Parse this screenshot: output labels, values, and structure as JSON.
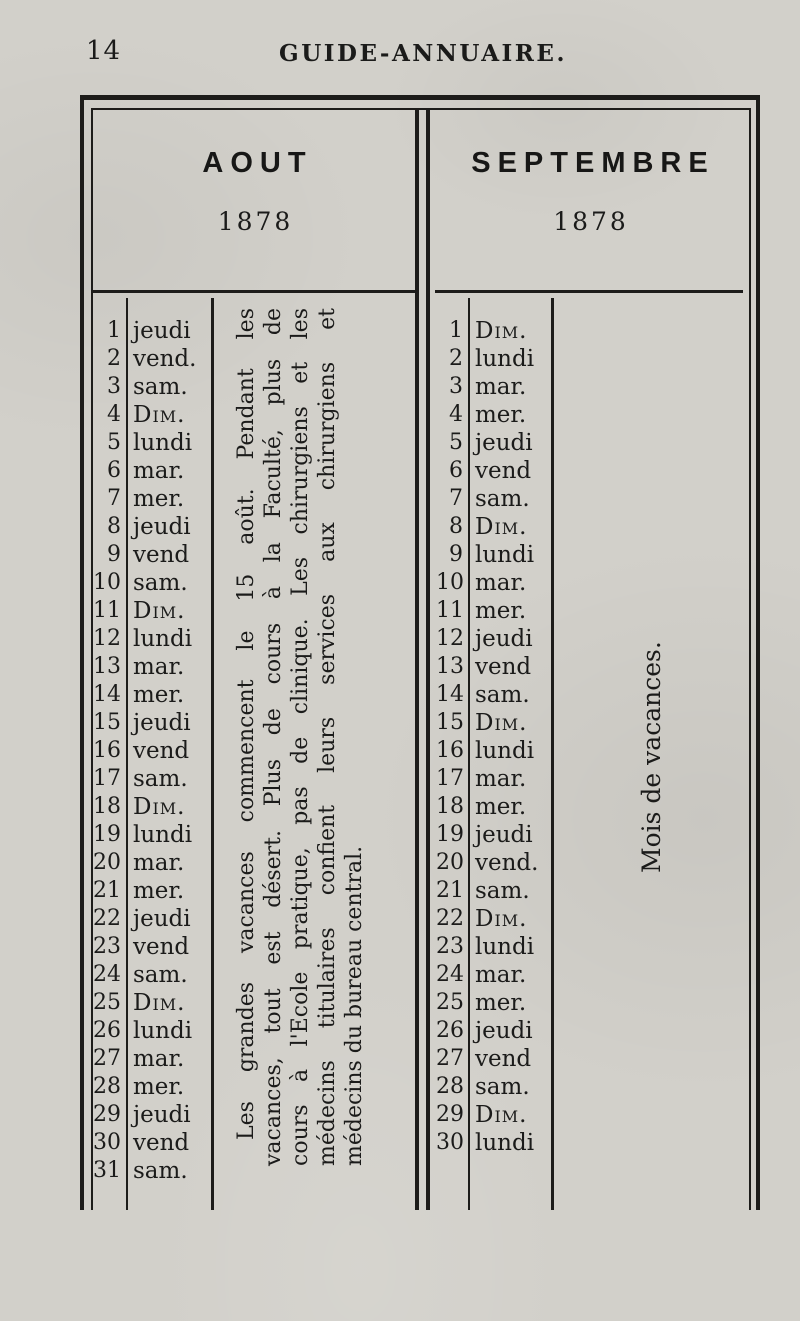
{
  "page": {
    "number": "14",
    "header": "GUIDE-ANNUAIRE."
  },
  "august": {
    "title": "AOUT",
    "year": "1878",
    "days": [
      {
        "n": "1",
        "d": "jeudi"
      },
      {
        "n": "2",
        "d": "vend."
      },
      {
        "n": "3",
        "d": "sam."
      },
      {
        "n": "4",
        "d": "Dim.",
        "sc": true
      },
      {
        "n": "5",
        "d": "lundi"
      },
      {
        "n": "6",
        "d": "mar."
      },
      {
        "n": "7",
        "d": "mer."
      },
      {
        "n": "8",
        "d": "jeudi"
      },
      {
        "n": "9",
        "d": "vend"
      },
      {
        "n": "10",
        "d": "sam."
      },
      {
        "n": "11",
        "d": "Dim.",
        "sc": true
      },
      {
        "n": "12",
        "d": "lundi"
      },
      {
        "n": "13",
        "d": "mar."
      },
      {
        "n": "14",
        "d": "mer."
      },
      {
        "n": "15",
        "d": "jeudi"
      },
      {
        "n": "16",
        "d": "vend"
      },
      {
        "n": "17",
        "d": "sam."
      },
      {
        "n": "18",
        "d": "Dim.",
        "sc": true
      },
      {
        "n": "19",
        "d": "lundi"
      },
      {
        "n": "20",
        "d": "mar."
      },
      {
        "n": "21",
        "d": "mer."
      },
      {
        "n": "22",
        "d": "jeudi"
      },
      {
        "n": "23",
        "d": "vend"
      },
      {
        "n": "24",
        "d": "sam."
      },
      {
        "n": "25",
        "d": "Dim.",
        "sc": true
      },
      {
        "n": "26",
        "d": "lundi"
      },
      {
        "n": "27",
        "d": "mar."
      },
      {
        "n": "28",
        "d": "mer."
      },
      {
        "n": "29",
        "d": "jeudi"
      },
      {
        "n": "30",
        "d": "vend"
      },
      {
        "n": "31",
        "d": "sam."
      }
    ],
    "note_lines": [
      "Les grandes vacances commencent le 15 août. Pendant les",
      "vacances, tout est désert. Plus de cours à la Faculté, plus de",
      "cours à l'Ecole pratique, pas de clinique. Les chirurgiens et les",
      "médecins titulaires confient leurs services aux chirurgiens et",
      "médecins du bureau central."
    ]
  },
  "september": {
    "title": "SEPTEMBRE",
    "year": "1878",
    "days": [
      {
        "n": "1",
        "d": "Dim.",
        "sc": true
      },
      {
        "n": "2",
        "d": "lundi"
      },
      {
        "n": "3",
        "d": "mar."
      },
      {
        "n": "4",
        "d": "mer."
      },
      {
        "n": "5",
        "d": "jeudi"
      },
      {
        "n": "6",
        "d": "vend"
      },
      {
        "n": "7",
        "d": "sam."
      },
      {
        "n": "8",
        "d": "Dim.",
        "sc": true
      },
      {
        "n": "9",
        "d": "lundi"
      },
      {
        "n": "10",
        "d": "mar."
      },
      {
        "n": "11",
        "d": "mer."
      },
      {
        "n": "12",
        "d": "jeudi"
      },
      {
        "n": "13",
        "d": "vend"
      },
      {
        "n": "14",
        "d": "sam."
      },
      {
        "n": "15",
        "d": "Dim.",
        "sc": true
      },
      {
        "n": "16",
        "d": "lundi"
      },
      {
        "n": "17",
        "d": "mar."
      },
      {
        "n": "18",
        "d": "mer."
      },
      {
        "n": "19",
        "d": "jeudi"
      },
      {
        "n": "20",
        "d": "vend."
      },
      {
        "n": "21",
        "d": "sam."
      },
      {
        "n": "22",
        "d": "Dim.",
        "sc": true
      },
      {
        "n": "23",
        "d": "lundi"
      },
      {
        "n": "24",
        "d": "mar."
      },
      {
        "n": "25",
        "d": "mer."
      },
      {
        "n": "26",
        "d": "jeudi"
      },
      {
        "n": "27",
        "d": "vend"
      },
      {
        "n": "28",
        "d": "sam."
      },
      {
        "n": "29",
        "d": "Dim.",
        "sc": true
      },
      {
        "n": "30",
        "d": "lundi"
      }
    ],
    "note": "Mois de vacances."
  }
}
